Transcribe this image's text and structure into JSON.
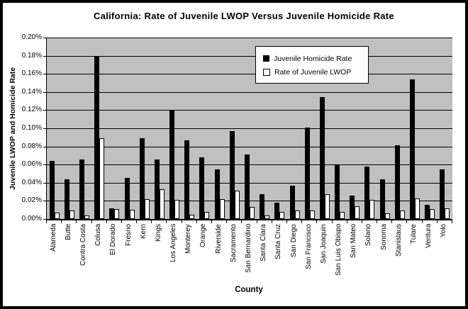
{
  "window": {
    "background": "#ffffff",
    "border_color": "#000000"
  },
  "chart_data": {
    "type": "bar",
    "title": "California: Rate of Juvenile LWOP Versus Juvenile Homicide Rate",
    "xlabel": "County",
    "ylabel": "Juvenile LWOP and Homicide Rate",
    "unit": "percent",
    "ylim": [
      0,
      0.2
    ],
    "ytick_step": 0.02,
    "ytick_labels": [
      "0.00%",
      "0.02%",
      "0.04%",
      "0.06%",
      "0.08%",
      "0.10%",
      "0.12%",
      "0.14%",
      "0.16%",
      "0.18%",
      "0.20%"
    ],
    "grid": true,
    "plot_background": "#c0c0c0",
    "legend_position": "top-center-inside",
    "categories": [
      "Alameda",
      "Butte",
      "Contra Costa",
      "Colusa",
      "El Dorado",
      "Fresno",
      "Kern",
      "Kings",
      "Los Angeles",
      "Monterey",
      "Orange",
      "Riverside",
      "Sacramento",
      "San Bernardino",
      "Santa Clara",
      "Santa Cruz",
      "San Diego",
      "San Francisco",
      "San Joaquin",
      "San Luis Obispo",
      "San Mateo",
      "Solano",
      "Sonoma",
      "Stanislaus",
      "Tulare",
      "Ventura",
      "Yolo"
    ],
    "series": [
      {
        "name": "Juvenile Homicide Rate",
        "color": "#000000",
        "values": [
          0.064,
          0.044,
          0.066,
          0.18,
          0.012,
          0.045,
          0.089,
          0.066,
          0.12,
          0.087,
          0.068,
          0.055,
          0.097,
          0.071,
          0.027,
          0.018,
          0.037,
          0.101,
          0.134,
          0.059,
          0.026,
          0.058,
          0.044,
          0.081,
          0.154,
          0.016,
          0.055
        ]
      },
      {
        "name": "Rate of Juvenile LWOP",
        "color": "#ffffff",
        "values": [
          0.007,
          0.009,
          0.004,
          0.089,
          0.011,
          0.01,
          0.022,
          0.033,
          0.021,
          0.005,
          0.008,
          0.022,
          0.031,
          0.013,
          0.004,
          0.008,
          0.009,
          0.009,
          0.027,
          0.008,
          0.014,
          0.021,
          0.006,
          0.009,
          0.023,
          0.011,
          0.012
        ]
      }
    ]
  }
}
